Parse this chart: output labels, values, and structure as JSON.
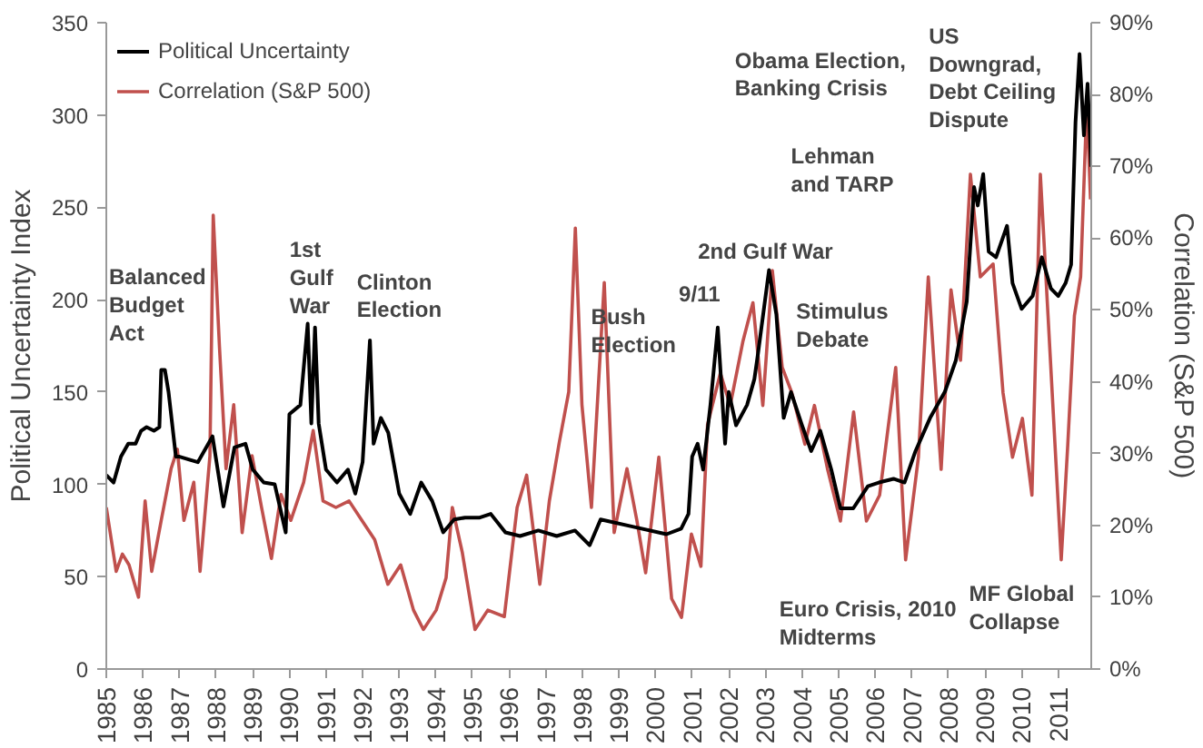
{
  "chart_data": {
    "type": "line",
    "ylabel": "Political Uncertainty Index",
    "y2label": "Correlation (S&P 500)",
    "xlim": [
      1985,
      2011.9
    ],
    "xticks": [
      1985,
      1986,
      1987,
      1988,
      1989,
      1990,
      1991,
      1992,
      1993,
      1994,
      1995,
      1996,
      1997,
      1998,
      1999,
      2000,
      2001,
      2002,
      2003,
      2004,
      2005,
      2006,
      2007,
      2008,
      2009,
      2010,
      2011
    ],
    "ylim": [
      0,
      350
    ],
    "yticks": [
      0,
      50,
      100,
      150,
      200,
      250,
      300,
      350
    ],
    "y2lim": [
      0,
      90
    ],
    "y2ticks": [
      {
        "value": 0,
        "label": "0%"
      },
      {
        "value": 10,
        "label": "10%"
      },
      {
        "value": 20,
        "label": "20%"
      },
      {
        "value": 30,
        "label": "30%"
      },
      {
        "value": 40,
        "label": "40%"
      },
      {
        "value": 50,
        "label": "50%"
      },
      {
        "value": 60,
        "label": "60%"
      },
      {
        "value": 70,
        "label": "70%"
      },
      {
        "value": 80,
        "label": "80%"
      },
      {
        "value": 90,
        "label": "90%"
      }
    ],
    "grid": false,
    "legend": "top left",
    "line_style": "solid",
    "marker": "none",
    "series": [
      {
        "name": "Political Uncertainty",
        "color": "#000000",
        "x": [
          1985.0,
          1985.2,
          1985.4,
          1985.6,
          1985.8,
          1985.95,
          1986.1,
          1986.3,
          1986.45,
          1986.5,
          1986.6,
          1986.7,
          1986.9,
          1987.0,
          1987.5,
          1987.9,
          1988.2,
          1988.5,
          1988.8,
          1989.0,
          1989.3,
          1989.6,
          1989.9,
          1990.0,
          1990.3,
          1990.5,
          1990.6,
          1990.7,
          1990.8,
          1991.0,
          1991.3,
          1991.6,
          1991.8,
          1992.0,
          1992.2,
          1992.3,
          1992.5,
          1992.7,
          1993.0,
          1993.3,
          1993.6,
          1993.9,
          1994.2,
          1994.5,
          1994.8,
          1995.2,
          1995.5,
          1995.9,
          1996.3,
          1996.8,
          1997.3,
          1997.8,
          1998.2,
          1998.5,
          1999.4,
          2000.3,
          2000.7,
          2000.9,
          2001.0,
          2001.15,
          2001.3,
          2001.5,
          2001.7,
          2001.9,
          2002.0,
          2002.2,
          2002.5,
          2002.7,
          2002.8,
          2003.1,
          2003.3,
          2003.5,
          2003.7,
          2004.0,
          2004.25,
          2004.5,
          2004.8,
          2005.05,
          2005.4,
          2005.8,
          2006.1,
          2006.5,
          2006.8,
          2007.1,
          2007.5,
          2007.9,
          2008.2,
          2008.5,
          2008.7,
          2008.8,
          2008.95,
          2009.1,
          2009.3,
          2009.6,
          2009.75,
          2010.0,
          2010.3,
          2010.55,
          2010.8,
          2011.0,
          2011.2,
          2011.35,
          2011.47,
          2011.58,
          2011.7,
          2011.8,
          2011.9
        ],
        "values": [
          105,
          101,
          115,
          122,
          122,
          129,
          131,
          129,
          131,
          162,
          162,
          150,
          115,
          115,
          112,
          126,
          88,
          120,
          122,
          108,
          101,
          100,
          74,
          138,
          143,
          187,
          133,
          185,
          133,
          108,
          101,
          108,
          95,
          112,
          178,
          122,
          136,
          128,
          95,
          84,
          101,
          91,
          74,
          81,
          82,
          82,
          84,
          74,
          72,
          75,
          72,
          75,
          67,
          81,
          77,
          73,
          76,
          84,
          115,
          122,
          108,
          143,
          185,
          122,
          150,
          132,
          143,
          157,
          171,
          216,
          192,
          136,
          150,
          132,
          118,
          129,
          108,
          87,
          87,
          99,
          101,
          103,
          101,
          118,
          136,
          150,
          167,
          199,
          261,
          251,
          268,
          226,
          223,
          240,
          209,
          195,
          202,
          223,
          206,
          202,
          209,
          219,
          296,
          333,
          289,
          317,
          272
        ]
      },
      {
        "name": "Correlation (S&P 500)",
        "color": "#c0504d",
        "axis": "y2",
        "x": [
          1985.0,
          1985.27,
          1985.44,
          1985.62,
          1985.88,
          1986.06,
          1986.24,
          1986.5,
          1986.77,
          1986.94,
          1987.12,
          1987.39,
          1987.56,
          1987.83,
          1987.92,
          1988.09,
          1988.27,
          1988.48,
          1988.71,
          1988.98,
          1989.24,
          1989.51,
          1989.77,
          1990.04,
          1990.39,
          1990.65,
          1990.92,
          1991.27,
          1991.63,
          1991.98,
          1992.33,
          1992.69,
          1993.04,
          1993.39,
          1993.66,
          1994.01,
          1994.28,
          1994.45,
          1994.72,
          1995.07,
          1995.42,
          1995.87,
          1996.22,
          1996.48,
          1996.84,
          1997.1,
          1997.37,
          1997.63,
          1997.81,
          1997.99,
          1998.25,
          1998.6,
          1998.87,
          1999.22,
          1999.49,
          1999.73,
          2000.09,
          2000.44,
          2000.71,
          2000.98,
          2001.24,
          2001.42,
          2001.77,
          2002.04,
          2002.39,
          2002.66,
          2002.93,
          2003.19,
          2003.46,
          2003.72,
          2004.08,
          2004.34,
          2004.7,
          2005.05,
          2005.41,
          2005.76,
          2006.12,
          2006.56,
          2006.83,
          2007.18,
          2007.45,
          2007.8,
          2008.07,
          2008.33,
          2008.6,
          2008.87,
          2009.22,
          2009.49,
          2009.75,
          2010.02,
          2010.28,
          2010.51,
          2010.72,
          2011.08,
          2011.26,
          2011.44,
          2011.61,
          2011.78,
          2011.88
        ],
        "values": [
          22.5,
          13.6,
          16,
          14.5,
          10,
          23.4,
          13.6,
          20.7,
          27.9,
          30.6,
          20.7,
          26,
          13.6,
          29.7,
          63.2,
          44.9,
          27.9,
          36.8,
          19,
          29.7,
          22.5,
          15.4,
          24.3,
          20.7,
          26,
          33.2,
          23.4,
          22.5,
          23.4,
          20.7,
          18,
          11.8,
          14.5,
          8.2,
          5.5,
          8.2,
          12.7,
          22.5,
          16.3,
          5.5,
          8.2,
          7.3,
          22.5,
          27,
          11.8,
          23.4,
          31.5,
          38.6,
          61.4,
          36.8,
          22.5,
          53.8,
          19,
          27.9,
          20.7,
          13.4,
          29.5,
          9.8,
          7.2,
          18.8,
          14.3,
          34,
          41.2,
          36.7,
          45.7,
          51,
          36.7,
          55.5,
          42,
          38.5,
          31.3,
          36.7,
          27.8,
          20.6,
          35.8,
          20.6,
          24.2,
          42,
          15.2,
          29.5,
          54.6,
          27.8,
          52.8,
          43,
          68.9,
          54.6,
          56.4,
          38.5,
          29.5,
          34.9,
          24.2,
          68.9,
          49.2,
          15.2,
          31.3,
          49.2,
          54.6,
          78.8,
          65.4
        ]
      }
    ],
    "annotations": [
      "Balanced\nBudget\nAct",
      "1st\nGulf\nWar",
      "Clinton\nElection",
      "Bush\nElection",
      "9/11",
      "2nd Gulf War",
      "Stimulus\nDebate",
      "Lehman\nand TARP",
      "Obama Election,\nBanking Crisis",
      "US\nDowngrad,\nDebt Ceiling\nDispute",
      "Euro Crisis, 2010\nMidterms",
      "MF Global\nCollapse"
    ]
  }
}
